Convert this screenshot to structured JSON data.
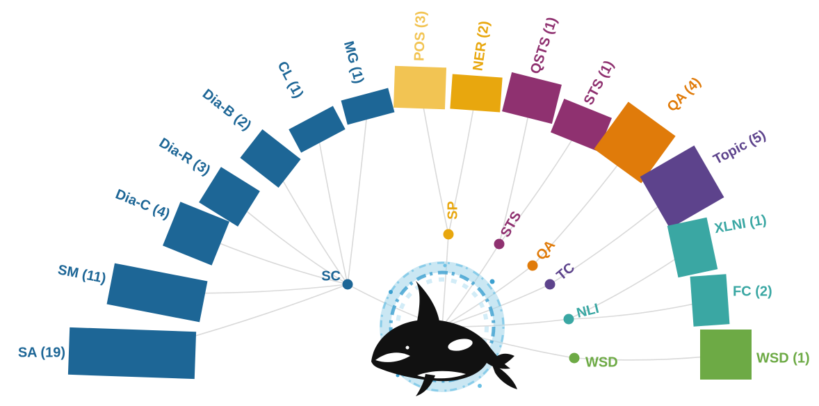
{
  "colors": {
    "sc": "#1d6696",
    "sp_light": "#f2c453",
    "sp": "#e8a70e",
    "sts": "#8f3170",
    "qa": "#e07b0a",
    "tc": "#5d438c",
    "nli": "#3aa7a3",
    "wsd": "#6daa45",
    "link": "#d9d9d9"
  },
  "categories": [
    {
      "id": "sc",
      "label": "SC",
      "color": "#1d6696"
    },
    {
      "id": "sp",
      "label": "SP",
      "color": "#e8a70e"
    },
    {
      "id": "sts",
      "label": "STS",
      "color": "#8f3170"
    },
    {
      "id": "qa",
      "label": "QA",
      "color": "#e07b0a"
    },
    {
      "id": "tc",
      "label": "TC",
      "color": "#5d438c"
    },
    {
      "id": "nli",
      "label": "NLI",
      "color": "#3aa7a3"
    },
    {
      "id": "wsd",
      "label": "WSD",
      "color": "#6daa45"
    }
  ],
  "tasks": [
    {
      "id": "sa",
      "label": "SA (19)",
      "name": "SA",
      "count": 19,
      "category": "sc"
    },
    {
      "id": "sm",
      "label": "SM (11)",
      "name": "SM",
      "count": 11,
      "category": "sc"
    },
    {
      "id": "dia-c",
      "label": "Dia-C (4)",
      "name": "Dia-C",
      "count": 4,
      "category": "sc"
    },
    {
      "id": "dia-r",
      "label": "Dia-R (3)",
      "name": "Dia-R",
      "count": 3,
      "category": "sc"
    },
    {
      "id": "dia-b",
      "label": "Dia-B (2)",
      "name": "Dia-B",
      "count": 2,
      "category": "sc"
    },
    {
      "id": "cl",
      "label": "CL (1)",
      "name": "CL",
      "count": 1,
      "category": "sc"
    },
    {
      "id": "mg",
      "label": "MG (1)",
      "name": "MG",
      "count": 1,
      "category": "sc"
    },
    {
      "id": "pos",
      "label": "POS (3)",
      "name": "POS",
      "count": 3,
      "category": "sp",
      "color": "#f2c453"
    },
    {
      "id": "ner",
      "label": "NER (2)",
      "name": "NER",
      "count": 2,
      "category": "sp"
    },
    {
      "id": "qsts",
      "label": "QSTS (1)",
      "name": "QSTS",
      "count": 1,
      "category": "sts"
    },
    {
      "id": "sts-t",
      "label": "STS (1)",
      "name": "STS",
      "count": 1,
      "category": "sts"
    },
    {
      "id": "qa-t",
      "label": "QA (4)",
      "name": "QA",
      "count": 4,
      "category": "qa"
    },
    {
      "id": "topic",
      "label": "Topic (5)",
      "name": "Topic",
      "count": 5,
      "category": "tc"
    },
    {
      "id": "xlni",
      "label": "XLNI (1)",
      "name": "XLNI",
      "count": 1,
      "category": "nli"
    },
    {
      "id": "fc",
      "label": "FC (2)",
      "name": "FC",
      "count": 2,
      "category": "nli"
    },
    {
      "id": "wsd-t",
      "label": "WSD (1)",
      "name": "WSD",
      "count": 1,
      "category": "wsd"
    }
  ],
  "mascot": {
    "icon": "orca-splash-icon"
  }
}
